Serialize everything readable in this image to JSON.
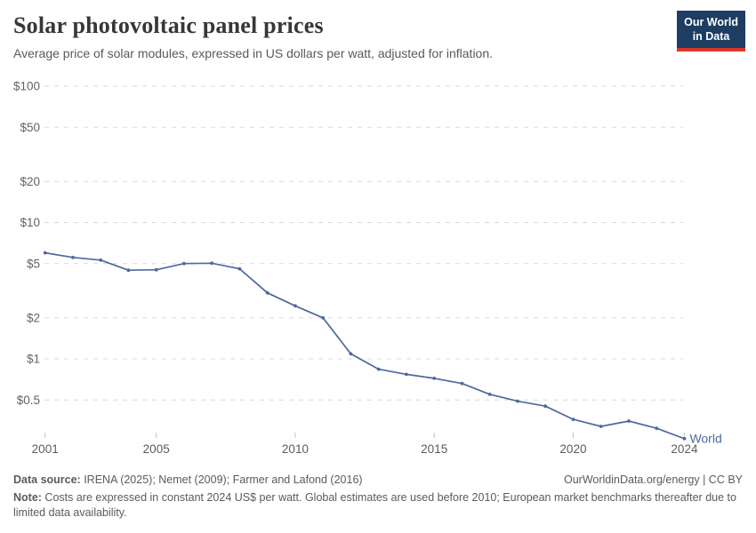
{
  "header": {
    "title": "Solar photovoltaic panel prices",
    "subtitle": "Average price of solar modules, expressed in US dollars per watt, adjusted for inflation.",
    "logo_line1": "Our World",
    "logo_line2": "in Data"
  },
  "chart_data": {
    "type": "line",
    "title": "Solar photovoltaic panel prices",
    "ylabel": "US dollars per watt (constant 2024 US$)",
    "xlabel": "",
    "y_scale": "log",
    "grid": "horizontal-dashed",
    "x_range": [
      2001,
      2024
    ],
    "y_range": [
      0.25,
      100
    ],
    "line_color": "#4c6a9c",
    "end_label": "World",
    "x_ticks": [
      2001,
      2005,
      2010,
      2015,
      2020,
      2024
    ],
    "y_ticks": [
      {
        "label": "$100",
        "value": 100
      },
      {
        "label": "$50",
        "value": 50
      },
      {
        "label": "$20",
        "value": 20
      },
      {
        "label": "$10",
        "value": 10
      },
      {
        "label": "$5",
        "value": 5
      },
      {
        "label": "$2",
        "value": 2
      },
      {
        "label": "$1",
        "value": 1
      },
      {
        "label": "$0.5",
        "value": 0.5
      }
    ],
    "series": [
      {
        "name": "World",
        "x": [
          2001,
          2002,
          2003,
          2004,
          2005,
          2006,
          2007,
          2008,
          2009,
          2010,
          2011,
          2012,
          2013,
          2014,
          2015,
          2016,
          2017,
          2018,
          2019,
          2020,
          2021,
          2022,
          2023,
          2024
        ],
        "values": [
          6.0,
          5.55,
          5.3,
          4.47,
          4.5,
          5.0,
          5.03,
          4.58,
          3.05,
          2.45,
          2.0,
          1.09,
          0.84,
          0.77,
          0.72,
          0.66,
          0.55,
          0.49,
          0.45,
          0.36,
          0.32,
          0.35,
          0.31,
          0.26
        ]
      }
    ]
  },
  "footer": {
    "source_label": "Data source:",
    "source_text": " IRENA (2025); Nemet (2009); Farmer and Lafond (2016)",
    "attribution": "OurWorldinData.org/energy | CC BY",
    "note_label": "Note:",
    "note_text": " Costs are expressed in constant 2024 US$ per watt. Global estimates are used before 2010; European market benchmarks thereafter due to limited data availability."
  },
  "colors": {
    "line": "#4c6a9c",
    "logo_navy": "#1d3d63",
    "logo_red": "#d7382e",
    "gridline": "#dadada",
    "text_gray": "#5b5b5b"
  }
}
